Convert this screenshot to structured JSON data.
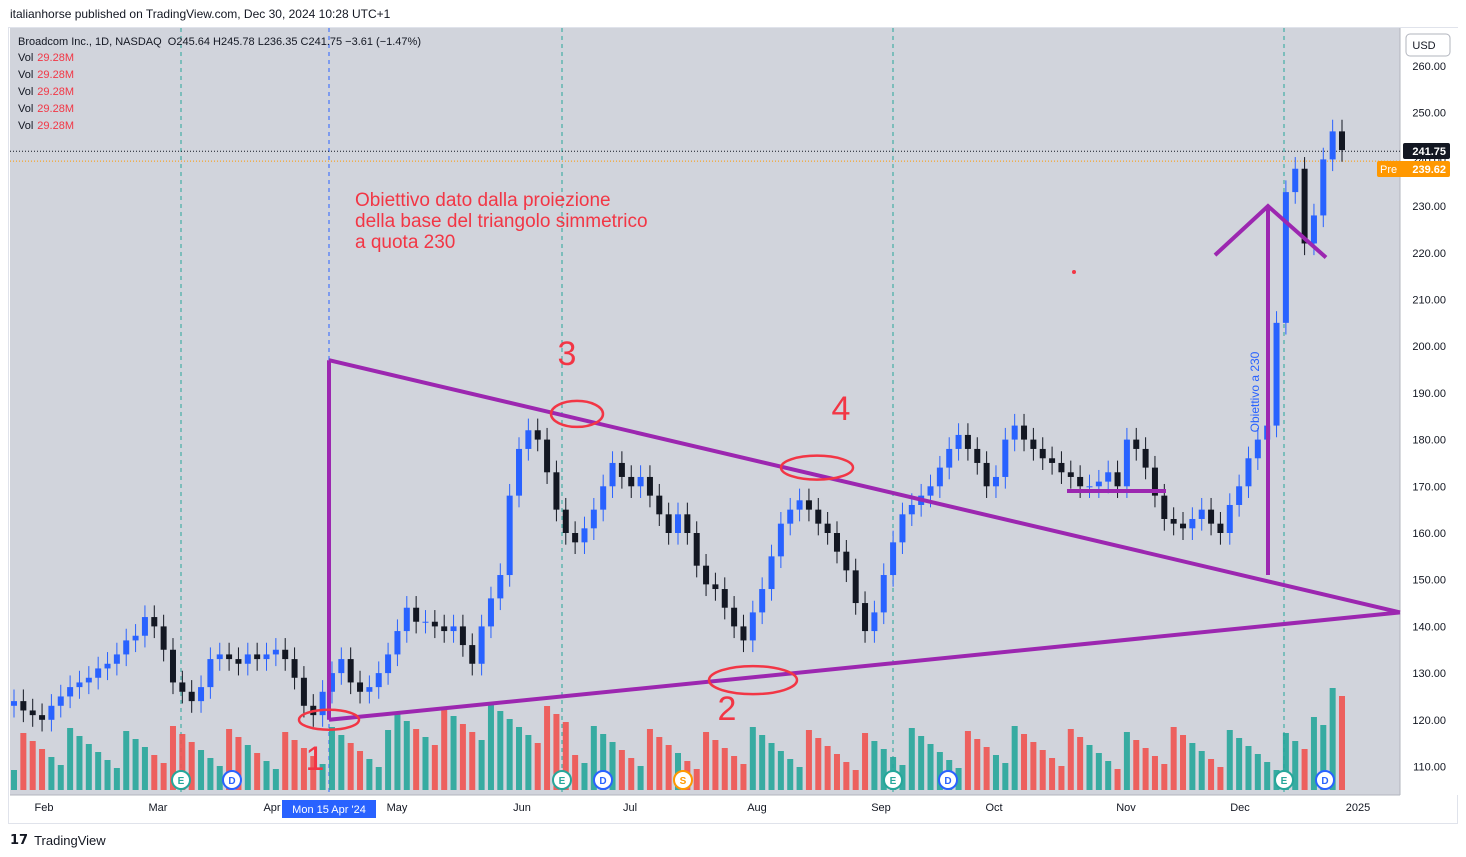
{
  "header": {
    "published": "italianhorse published on TradingView.com, Dec 30, 2024 10:28 UTC+1"
  },
  "legend": {
    "symbol": "Broadcom Inc., 1D, NASDAQ",
    "ohlc": "O245.64 H245.78 L236.35 C241.75 −3.61 (−1.47%)",
    "vol_rows": [
      {
        "label": "Vol",
        "value": "29.28M"
      },
      {
        "label": "Vol",
        "value": "29.28M"
      },
      {
        "label": "Vol",
        "value": "29.28M"
      },
      {
        "label": "Vol",
        "value": "29.28M"
      },
      {
        "label": "Vol",
        "value": "29.28M"
      }
    ]
  },
  "currency": "USD",
  "price_badges": {
    "last": "241.75",
    "pre_label": "Pre",
    "pre": "239.62"
  },
  "crosshair_date": "Mon 15 Apr '24",
  "annotations": {
    "note": [
      "Obiettivo dato dalla proiezione",
      "della base del triangolo simmetrico",
      "a quota 230"
    ],
    "target_vertical": "Obiettivo a 230",
    "points": [
      "1",
      "2",
      "3",
      "4"
    ]
  },
  "footer": {
    "brand": "TradingView"
  },
  "colors": {
    "up": "#2962ff",
    "down": "#131722",
    "vol_up": "#26a69a",
    "vol_down": "#ef5350",
    "drawing": "#9c27b0",
    "annotation": "#f23645",
    "badge_last": "#131722",
    "badge_pre": "#ff9800"
  },
  "chart_data": {
    "type": "candlestick",
    "title": "Broadcom Inc., 1D, NASDAQ",
    "ylim": [
      105,
      266
    ],
    "y_ticks": [
      260,
      250,
      240,
      230,
      220,
      210,
      200,
      190,
      180,
      170,
      160,
      150,
      140,
      130,
      120,
      110
    ],
    "x_ticks": [
      "Feb",
      "Mar",
      "Apr",
      "May",
      "Jun",
      "Jul",
      "Aug",
      "Sep",
      "Oct",
      "Nov",
      "Dec",
      "2025"
    ],
    "event_markers": [
      {
        "date": "Mar",
        "label": "E"
      },
      {
        "date": "Mar",
        "label": "D"
      },
      {
        "date": "Jun",
        "label": "E"
      },
      {
        "date": "Jun",
        "label": "D"
      },
      {
        "date": "Jul",
        "label": "S"
      },
      {
        "date": "Sep",
        "label": "E"
      },
      {
        "date": "Sep",
        "label": "D"
      },
      {
        "date": "Dec",
        "label": "E"
      },
      {
        "date": "Dec",
        "label": "D"
      }
    ],
    "triangle": {
      "apex_price": 143,
      "top_start": 197,
      "bottom_start": 120,
      "target": 230
    },
    "series_close_sample": [
      124,
      122,
      121,
      120,
      123,
      125,
      127,
      128,
      129,
      131,
      132,
      134,
      137,
      138,
      142,
      140,
      135,
      128,
      126,
      124,
      127,
      133,
      134,
      133,
      132,
      134,
      133,
      134,
      135,
      133,
      129,
      123,
      121,
      126,
      130,
      133,
      128,
      126,
      127,
      130,
      134,
      139,
      144,
      141,
      141,
      140,
      139,
      140,
      136,
      132,
      140,
      146,
      151,
      168,
      178,
      182,
      180,
      173,
      165,
      160,
      158,
      161,
      165,
      170,
      175,
      172,
      170,
      172,
      168,
      164,
      160,
      164,
      160,
      153,
      149,
      148,
      144,
      140,
      137,
      143,
      148,
      155,
      162,
      165,
      167,
      165,
      162,
      160,
      156,
      152,
      145,
      139,
      143,
      151,
      158,
      164,
      166,
      168,
      170,
      174,
      178,
      181,
      178,
      175,
      170,
      172,
      180,
      183,
      180,
      178,
      176,
      175,
      173,
      172,
      170,
      170,
      171,
      173,
      170,
      180,
      178,
      174,
      168,
      163,
      162,
      161,
      163,
      165,
      162,
      160,
      166,
      170,
      176,
      180,
      183,
      205,
      233,
      238,
      222,
      228,
      240,
      246,
      242
    ]
  }
}
